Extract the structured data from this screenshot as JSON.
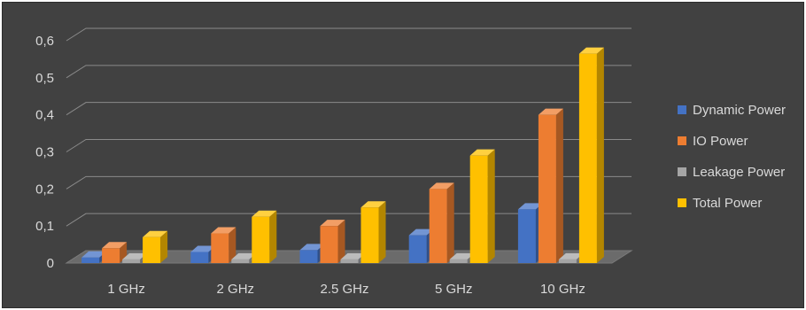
{
  "chart_data": {
    "type": "bar",
    "categories": [
      "1 GHz",
      "2 GHz",
      "2.5 GHz",
      "5 GHz",
      "10 GHz"
    ],
    "series": [
      {
        "name": "Dynamic Power",
        "color": "#4472c4",
        "values": [
          0.015,
          0.03,
          0.035,
          0.075,
          0.145
        ]
      },
      {
        "name": "IO Power",
        "color": "#ed7d31",
        "values": [
          0.04,
          0.08,
          0.1,
          0.2,
          0.4
        ]
      },
      {
        "name": "Leakage Power",
        "color": "#a5a5a5",
        "values": [
          0.01,
          0.01,
          0.01,
          0.01,
          0.01
        ]
      },
      {
        "name": "Total Power",
        "color": "#ffc000",
        "values": [
          0.07,
          0.125,
          0.15,
          0.29,
          0.565
        ]
      }
    ],
    "yticks": [
      "0",
      "0,1",
      "0,2",
      "0,3",
      "0,4",
      "0,5",
      "0,6"
    ],
    "ylim": [
      0,
      0.6
    ],
    "grid": true,
    "legend": "right",
    "title": "",
    "xlabel": "",
    "ylabel": "",
    "style": "3d-clustered-column",
    "background": "#414141"
  }
}
